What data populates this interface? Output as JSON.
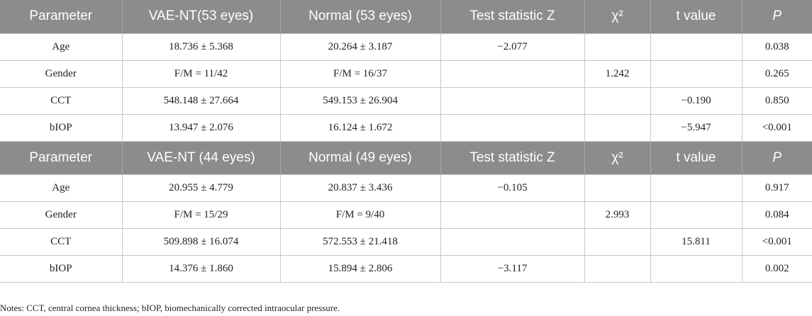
{
  "table1": {
    "headers": [
      "Parameter",
      "VAE-NT(53 eyes)",
      "Normal (53 eyes)",
      "Test statistic Z",
      "χ²",
      "t value",
      "P"
    ],
    "rows": [
      [
        "Age",
        "18.736 ± 5.368",
        "20.264 ± 3.187",
        "−2.077",
        "",
        "",
        "0.038"
      ],
      [
        "Gender",
        "F/M = 11/42",
        "F/M = 16/37",
        "",
        "1.242",
        "",
        "0.265"
      ],
      [
        "CCT",
        "548.148 ± 27.664",
        "549.153 ± 26.904",
        "",
        "",
        "−0.190",
        "0.850"
      ],
      [
        "bIOP",
        "13.947 ± 2.076",
        "16.124 ± 1.672",
        "",
        "",
        "−5.947",
        "<0.001"
      ]
    ]
  },
  "table2": {
    "headers": [
      "Parameter",
      "VAE-NT (44 eyes)",
      "Normal (49 eyes)",
      "Test statistic Z",
      "χ²",
      "t value",
      "P"
    ],
    "rows": [
      [
        "Age",
        "20.955 ± 4.779",
        "20.837 ± 3.436",
        "−0.105",
        "",
        "",
        "0.917"
      ],
      [
        "Gender",
        "F/M = 15/29",
        "F/M = 9/40",
        "",
        "2.993",
        "",
        "0.084"
      ],
      [
        "CCT",
        "509.898 ± 16.074",
        "572.553 ± 21.418",
        "",
        "",
        "15.811",
        "<0.001"
      ],
      [
        "bIOP",
        "14.376 ± 1.860",
        "15.894 ± 2.806",
        "−3.117",
        "",
        "",
        "0.002"
      ]
    ]
  },
  "notes": "Notes: CCT, central cornea thickness; bIOP, biomechanically corrected intraocular pressure."
}
